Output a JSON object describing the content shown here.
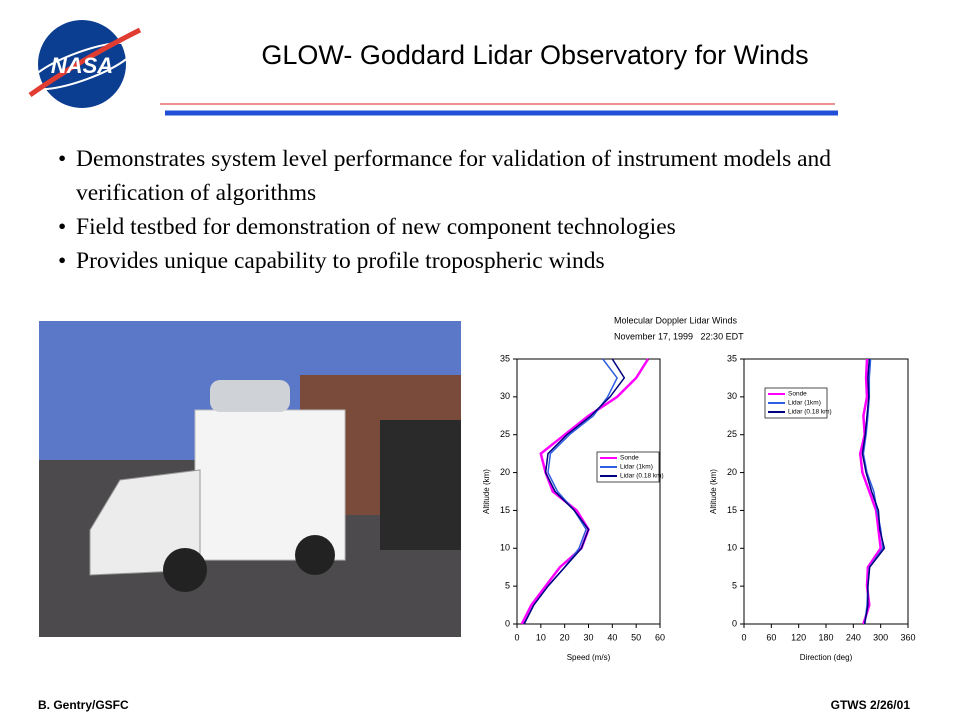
{
  "header": {
    "logo_text": "NASA",
    "title": "GLOW- Goddard Lidar Observatory for Winds"
  },
  "bullets": [
    "Demonstrates system level performance for validation of instrument models and verification of algorithms",
    "Field testbed for demonstration of new component technologies",
    "Provides unique capability to profile tropospheric winds"
  ],
  "figure": {
    "title": "Molecular Doppler Lidar Winds",
    "subtitle": "November 17, 1999   22:30 EDT"
  },
  "chart_data": [
    {
      "type": "line",
      "x_label": "Speed (m/s)",
      "y_label": "Altitude (km)",
      "xlim": [
        0,
        60
      ],
      "xticks": [
        0,
        10,
        20,
        30,
        40,
        50,
        60
      ],
      "ylim": [
        0,
        35
      ],
      "yticks": [
        0,
        5,
        10,
        15,
        20,
        25,
        30,
        35
      ],
      "series": [
        {
          "name": "Sonde",
          "color": "#ff00ff",
          "y": [
            0,
            2.5,
            5,
            7.5,
            10,
            12.5,
            15,
            17.5,
            20,
            22.5,
            25,
            27.5,
            30,
            32.5,
            35
          ],
          "x": [
            2,
            6,
            12,
            18,
            27,
            30,
            25,
            15,
            12,
            10,
            20,
            30,
            42,
            50,
            55
          ]
        },
        {
          "name": "Lidar (1km)",
          "color": "#2f5fe0",
          "y": [
            0,
            2.5,
            5,
            7.5,
            10,
            12.5,
            15,
            17.5,
            20,
            22.5,
            25,
            27.5,
            30,
            32.5,
            35
          ],
          "x": [
            3,
            7,
            13,
            20,
            26,
            29,
            24,
            17,
            13,
            14,
            22,
            32,
            38,
            42,
            36
          ]
        },
        {
          "name": "Lidar (0.18 km)",
          "color": "#000080",
          "y": [
            0,
            2.5,
            5,
            7.5,
            10,
            12.5,
            15,
            17.5,
            20,
            22.5,
            25,
            27.5,
            30,
            32.5,
            35
          ],
          "x": [
            3,
            7,
            13,
            20,
            27,
            30,
            24,
            16,
            12,
            13,
            21,
            31,
            39,
            45,
            40
          ]
        }
      ]
    },
    {
      "type": "line",
      "x_label": "Direction (deg)",
      "y_label": "Altitude (km)",
      "xlim": [
        0,
        360
      ],
      "xticks": [
        0,
        60,
        120,
        180,
        240,
        300,
        360
      ],
      "ylim": [
        0,
        35
      ],
      "yticks": [
        0,
        5,
        10,
        15,
        20,
        25,
        30,
        35
      ],
      "series": [
        {
          "name": "Sonde",
          "color": "#ff00ff",
          "y": [
            0,
            2.5,
            5,
            7.5,
            10,
            12.5,
            15,
            17.5,
            20,
            22.5,
            25,
            27.5,
            30,
            32.5,
            35
          ],
          "x": [
            262,
            275,
            270,
            272,
            300,
            295,
            290,
            275,
            260,
            255,
            265,
            262,
            270,
            268,
            270
          ]
        },
        {
          "name": "Lidar (1km)",
          "color": "#2f5fe0",
          "y": [
            0,
            2.5,
            5,
            7.5,
            10,
            12.5,
            15,
            17.5,
            20,
            22.5,
            25,
            27.5,
            30,
            32.5,
            35
          ],
          "x": [
            265,
            270,
            272,
            275,
            305,
            300,
            292,
            285,
            270,
            262,
            268,
            272,
            275,
            275,
            278
          ]
        },
        {
          "name": "Lidar (0.18 km)",
          "color": "#000080",
          "y": [
            0,
            2.5,
            5,
            7.5,
            10,
            12.5,
            15,
            17.5,
            20,
            22.5,
            25,
            27.5,
            30,
            32.5,
            35
          ],
          "x": [
            265,
            272,
            272,
            276,
            308,
            298,
            295,
            280,
            268,
            260,
            266,
            270,
            274,
            272,
            275
          ]
        }
      ]
    }
  ],
  "footer": {
    "left": "B. Gentry/GSFC",
    "right": "GTWS 2/26/01"
  }
}
